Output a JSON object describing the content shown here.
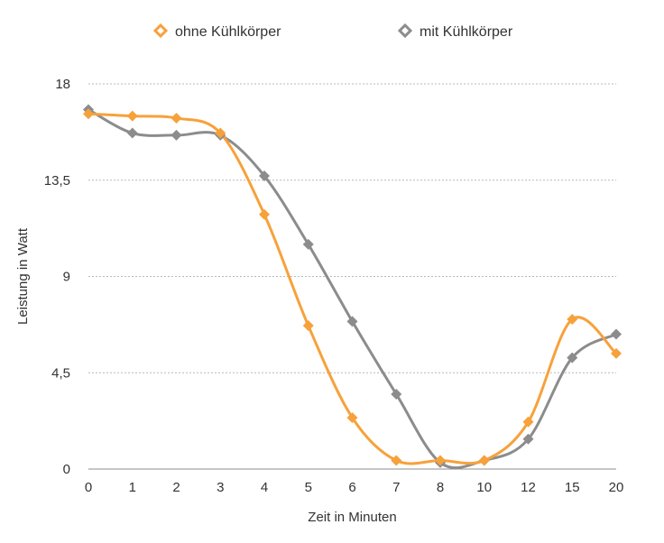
{
  "chart_data": {
    "type": "line",
    "smooth": true,
    "categories": [
      "0",
      "1",
      "2",
      "3",
      "4",
      "5",
      "6",
      "7",
      "8",
      "10",
      "12",
      "15",
      "20"
    ],
    "series": [
      {
        "name": "ohne Kühlkörper",
        "color": "#f7a13b",
        "marker": "diamond",
        "values": [
          16.6,
          16.5,
          16.4,
          15.7,
          11.9,
          6.7,
          2.4,
          0.4,
          0.4,
          0.4,
          2.2,
          7.0,
          5.4
        ]
      },
      {
        "name": "mit Kühlkörper",
        "color": "#8c8c8c",
        "marker": "diamond",
        "values": [
          16.8,
          15.7,
          15.6,
          15.6,
          13.7,
          10.5,
          6.9,
          3.5,
          0.3,
          0.4,
          1.4,
          5.2,
          6.3
        ]
      }
    ],
    "title": "",
    "xlabel": "Zeit in Minuten",
    "ylabel": "Leistung in Watt",
    "ylim": [
      0,
      18
    ],
    "yticks": [
      "0",
      "4,5",
      "9",
      "13,5",
      "18"
    ],
    "ytick_values": [
      0,
      4.5,
      9,
      13.5,
      18
    ],
    "grid": true,
    "legend_position": "top"
  }
}
